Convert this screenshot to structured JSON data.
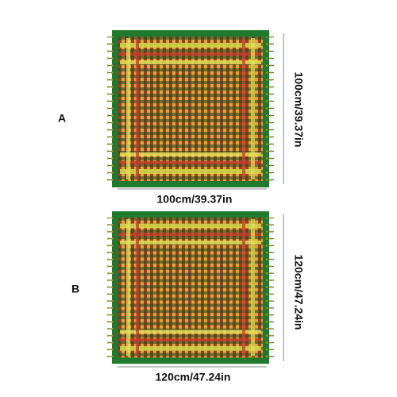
{
  "items": [
    {
      "label": "A",
      "width": "100cm/39.37in",
      "height": "100cm/39.37in"
    },
    {
      "label": "B",
      "width": "120cm/47.24in",
      "height": "120cm/47.24in"
    }
  ]
}
